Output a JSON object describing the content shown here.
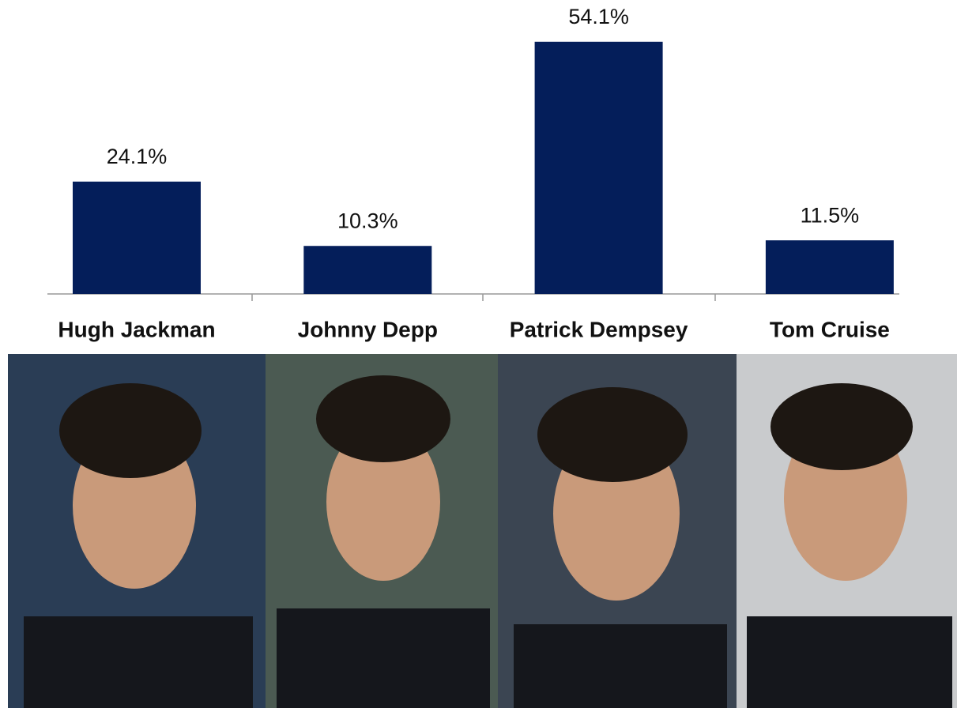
{
  "chart_data": {
    "type": "bar",
    "categories": [
      "Hugh Jackman",
      "Johnny Depp",
      "Patrick Dempsey",
      "Tom Cruise"
    ],
    "values": [
      24.1,
      10.3,
      54.1,
      11.5
    ],
    "value_labels": [
      "24.1%",
      "10.3%",
      "54.1%",
      "11.5%"
    ],
    "color": "#041e5a"
  }
}
